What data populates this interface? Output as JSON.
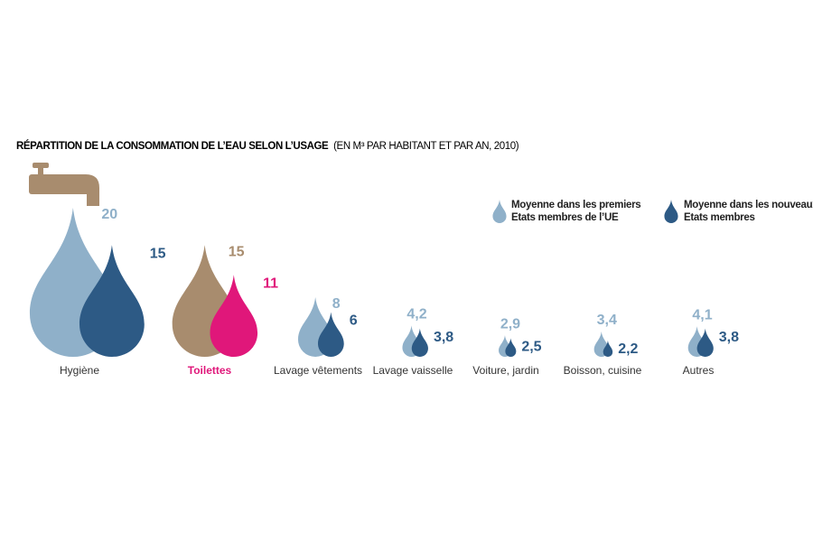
{
  "chart_data": {
    "type": "pictogram",
    "title": "RÉPARTITION DE LA CONSOMMATION DE L’EAU SELON L’USAGE",
    "subtitle": "(EN M³ PAR HABITANT ET PAR AN, 2010)",
    "categories": [
      "Hygiène",
      "Toilettes",
      "Lavage vêtements",
      "Lavage vaisselle",
      "Voiture, jardin",
      "Boisson, cuisine",
      "Autres"
    ],
    "category_label_colors": [
      "#333333",
      "#e0177a",
      "#333333",
      "#333333",
      "#333333",
      "#333333",
      "#333333"
    ],
    "series": [
      {
        "name": "Moyenne dans les premiers Etats membres de l’UE",
        "color": "#8fb0c9",
        "colors": [
          "#8fb0c9",
          "#a88c6e",
          "#8fb0c9",
          "#8fb0c9",
          "#8fb0c9",
          "#8fb0c9",
          "#8fb0c9"
        ],
        "values": [
          20,
          15,
          8,
          4.2,
          2.9,
          3.4,
          4.1
        ],
        "value_labels": [
          "20",
          "15",
          "8",
          "4,2",
          "2,9",
          "3,4",
          "4,1"
        ]
      },
      {
        "name": "Moyenne dans les nouveaux Etats membres",
        "color": "#2d5a85",
        "colors": [
          "#2d5a85",
          "#e0177a",
          "#2d5a85",
          "#2d5a85",
          "#2d5a85",
          "#2d5a85",
          "#2d5a85"
        ],
        "values": [
          15,
          11,
          6,
          3.8,
          2.5,
          2.2,
          3.8
        ],
        "value_labels": [
          "15",
          "11",
          "6",
          "3,8",
          "2,5",
          "2,2",
          "3,8"
        ]
      }
    ]
  }
}
